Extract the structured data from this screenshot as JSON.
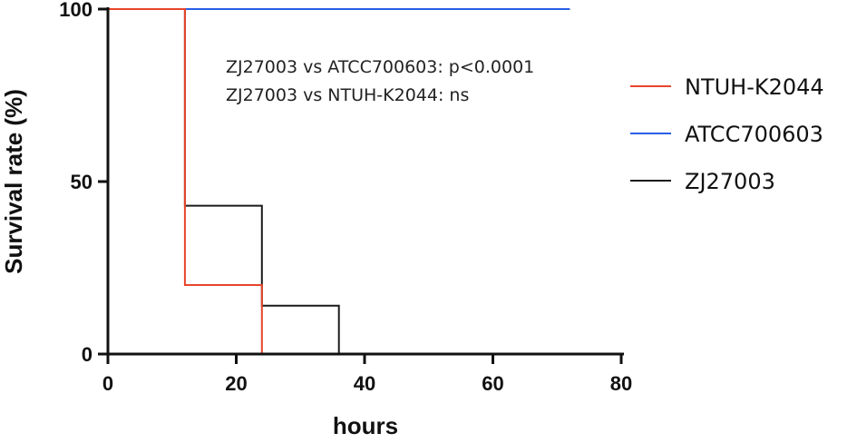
{
  "chart_data": {
    "type": "line",
    "step": true,
    "xlabel": "hours",
    "ylabel": "Survival rate (%)",
    "xlim": [
      0,
      80
    ],
    "ylim": [
      0,
      100
    ],
    "xticks": [
      "0",
      "20",
      "40",
      "60",
      "80"
    ],
    "yticks": [
      "0",
      "50",
      "100"
    ],
    "grid": false,
    "legend_position": "right",
    "annotations": [
      "ZJ27003 vs ATCC700603: p<0.0001",
      "ZJ27003 vs NTUH-K2044: ns"
    ],
    "series": [
      {
        "name": "NTUH-K2044",
        "color": "#e8442c",
        "x": [
          0,
          12,
          24
        ],
        "y": [
          100,
          20,
          0
        ]
      },
      {
        "name": "ATCC700603",
        "color": "#2a5ee8",
        "x": [
          0,
          72
        ],
        "y": [
          100,
          100
        ]
      },
      {
        "name": "ZJ27003",
        "color": "#1a1a1a",
        "x": [
          0,
          12,
          24,
          36
        ],
        "y": [
          100,
          43,
          14,
          0
        ]
      }
    ]
  }
}
